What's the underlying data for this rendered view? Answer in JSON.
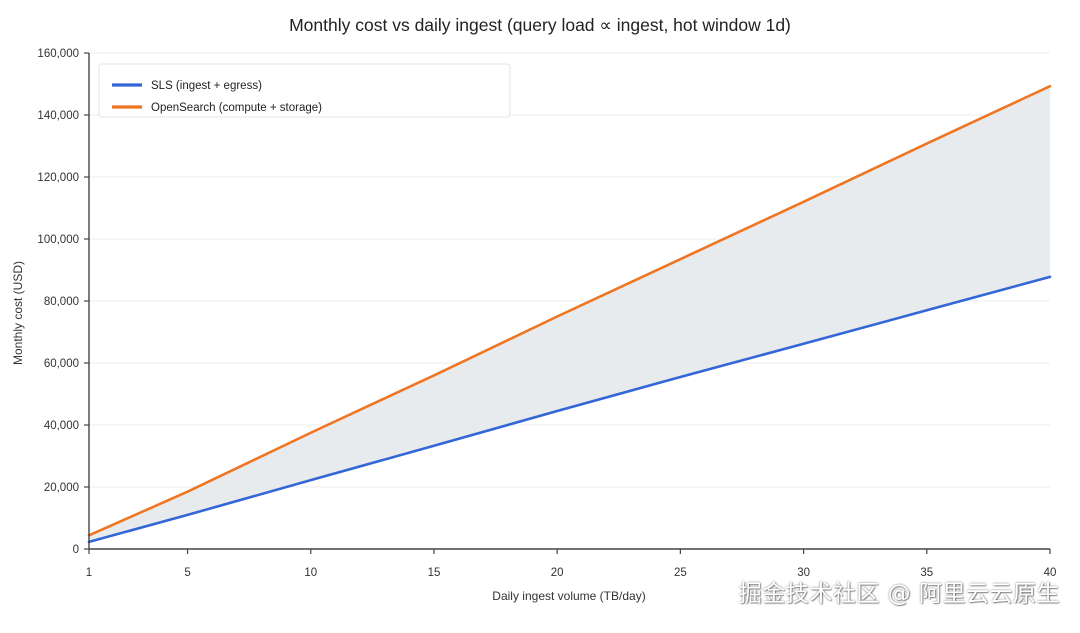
{
  "chart_data": {
    "type": "line",
    "title": "Monthly cost vs daily ingest (query load ∝ ingest, hot window 1d)",
    "xlabel": "Daily ingest volume (TB/day)",
    "ylabel": "Monthly cost (USD)",
    "xlim": [
      1,
      40
    ],
    "ylim": [
      0,
      160000
    ],
    "x_ticks": [
      1,
      5,
      10,
      15,
      20,
      25,
      30,
      35,
      40
    ],
    "y_ticks": [
      0,
      20000,
      40000,
      60000,
      80000,
      100000,
      120000,
      140000,
      160000
    ],
    "y_tick_labels": [
      "0",
      "20,000",
      "40,000",
      "60,000",
      "80,000",
      "100,000",
      "120,000",
      "140,000",
      "160,000"
    ],
    "x": [
      1,
      5,
      10,
      15,
      20,
      25,
      30,
      35,
      40
    ],
    "series": [
      {
        "name": "SLS (ingest + egress)",
        "color": "#3366d6",
        "values": [
          2300,
          11000,
          22200,
          33300,
          44500,
          55500,
          66200,
          77000,
          87800
        ]
      },
      {
        "name": "OpenSearch (compute + storage)",
        "color": "#ee7623",
        "values": [
          4400,
          18500,
          37500,
          56000,
          75000,
          93500,
          112000,
          130800,
          149300
        ]
      }
    ],
    "fill_between": {
      "color": "#e8ebee"
    },
    "grid": true,
    "legend_position": "top-left"
  },
  "watermark": "掘金技术社区 @ 阿里云云原生"
}
